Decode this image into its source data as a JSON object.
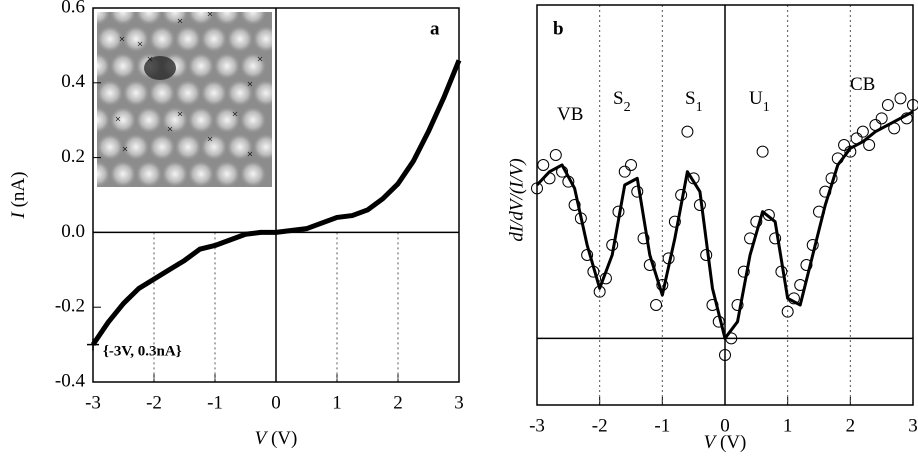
{
  "chart_data": [
    {
      "type": "line",
      "panel_label": "a",
      "annotation": "{-3V, 0.3nA}",
      "x_label": {
        "symbol": "V",
        "unit": "(V)"
      },
      "y_label": {
        "symbol": "I",
        "unit": "(nA)"
      },
      "x": [
        -3,
        -2.75,
        -2.5,
        -2.25,
        -2,
        -1.75,
        -1.5,
        -1.25,
        -1,
        -0.75,
        -0.5,
        -0.25,
        0,
        0.25,
        0.5,
        0.75,
        1,
        1.25,
        1.5,
        1.75,
        2,
        2.25,
        2.5,
        2.75,
        3
      ],
      "values": [
        -0.3,
        -0.24,
        -0.19,
        -0.15,
        -0.125,
        -0.1,
        -0.075,
        -0.045,
        -0.035,
        -0.02,
        -0.005,
        0,
        0,
        0.005,
        0.01,
        0.025,
        0.04,
        0.045,
        0.06,
        0.09,
        0.13,
        0.19,
        0.27,
        0.36,
        0.46
      ],
      "color": "#000000",
      "xlim": [
        -3,
        3
      ],
      "xticks": [
        -3,
        -2,
        -1,
        0,
        1,
        2,
        3
      ],
      "ylim": [
        -0.4,
        0.6
      ],
      "yticks": [
        -0.4,
        -0.2,
        {
          "value": 0,
          "label": "0.0"
        },
        0.2,
        0.4,
        0.6
      ]
    },
    {
      "type": "scatter",
      "panel_label": "b",
      "labels": [
        {
          "text": "VB"
        },
        {
          "text": "S",
          "sub": "2"
        },
        {
          "text": "S",
          "sub": "1"
        },
        {
          "text": "U",
          "sub": "1"
        },
        {
          "text": "CB"
        }
      ],
      "x_label": {
        "symbol": "V",
        "unit": "(V)"
      },
      "y_label": "dI/dV/(I/V)",
      "series": [
        {
          "type": "scatter",
          "color": "#000000",
          "x": [
            -3,
            -2.9,
            -2.8,
            -2.7,
            -2.6,
            -2.5,
            -2.4,
            -2.3,
            -2.2,
            -2.1,
            -2,
            -1.9,
            -1.8,
            -1.7,
            -1.6,
            -1.5,
            -1.4,
            -1.3,
            -1.2,
            -1.1,
            -1,
            -0.9,
            -0.8,
            -0.7,
            -0.6,
            -0.5,
            -0.4,
            -0.3,
            -0.2,
            -0.1,
            0,
            0.1,
            0.2,
            0.3,
            0.4,
            0.5,
            0.6,
            0.7,
            0.8,
            0.9,
            1,
            1.1,
            1.2,
            1.3,
            1.4,
            1.5,
            1.6,
            1.7,
            1.8,
            1.9,
            2,
            2.1,
            2.2,
            2.3,
            2.4,
            2.5,
            2.6,
            2.7,
            2.8,
            2.9,
            3
          ],
          "values": [
            0.45,
            0.52,
            0.48,
            0.55,
            0.5,
            0.47,
            0.4,
            0.36,
            0.25,
            0.2,
            0.14,
            0.18,
            0.28,
            0.38,
            0.5,
            0.52,
            0.44,
            0.3,
            0.22,
            0.1,
            0.16,
            0.24,
            0.35,
            0.43,
            0.62,
            0.48,
            0.4,
            0.25,
            0.1,
            0.05,
            -0.05,
            0,
            0.1,
            0.2,
            0.3,
            0.35,
            0.56,
            0.37,
            0.3,
            0.2,
            0.08,
            0.12,
            0.16,
            0.22,
            0.28,
            0.38,
            0.44,
            0.48,
            0.54,
            0.58,
            0.56,
            0.6,
            0.62,
            0.58,
            0.64,
            0.66,
            0.7,
            0.63,
            0.72,
            0.66,
            0.7
          ]
        },
        {
          "type": "line",
          "color": "#000000",
          "x": [
            -3,
            -2.8,
            -2.6,
            -2.4,
            -2.2,
            -2,
            -1.8,
            -1.6,
            -1.4,
            -1.2,
            -1,
            -0.8,
            -0.6,
            -0.4,
            -0.2,
            0,
            0.2,
            0.4,
            0.6,
            0.8,
            1,
            1.2,
            1.4,
            1.6,
            1.8,
            2,
            2.2,
            2.4,
            2.6,
            2.8,
            3
          ],
          "values": [
            0.46,
            0.5,
            0.52,
            0.45,
            0.28,
            0.15,
            0.25,
            0.46,
            0.48,
            0.25,
            0.13,
            0.3,
            0.5,
            0.44,
            0.15,
            0,
            0.05,
            0.25,
            0.38,
            0.35,
            0.12,
            0.1,
            0.25,
            0.4,
            0.52,
            0.57,
            0.59,
            0.62,
            0.64,
            0.66,
            0.68
          ]
        }
      ],
      "xlim": [
        -3,
        3
      ],
      "xticks": [
        -3,
        -2,
        -1,
        0,
        1,
        2,
        3
      ],
      "ylim": [
        -0.2,
        1
      ]
    }
  ]
}
